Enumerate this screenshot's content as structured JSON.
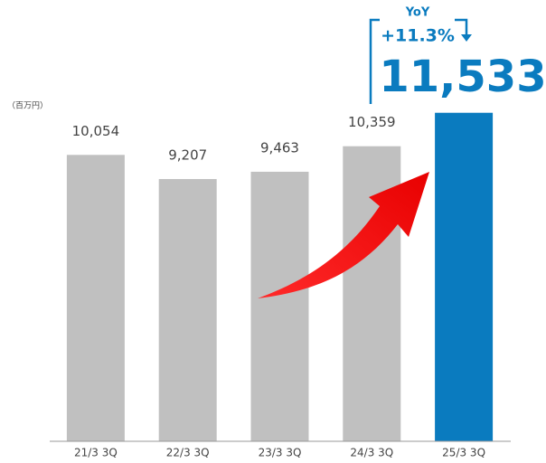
{
  "chart_data": {
    "type": "bar",
    "unit_label": "（百万円）",
    "categories": [
      "21/3 3Q",
      "22/3 3Q",
      "23/3 3Q",
      "24/3 3Q",
      "25/3 3Q"
    ],
    "values": [
      10054,
      9207,
      9463,
      10359,
      11533
    ],
    "value_labels": [
      "10,054",
      "9,207",
      "9,463",
      "10,359",
      "11,533"
    ],
    "colors": [
      "#c0c0c0",
      "#c0c0c0",
      "#c0c0c0",
      "#c0c0c0",
      "#0a7bbf"
    ],
    "ylim": [
      0,
      12000
    ],
    "annotations": [
      "YoY",
      "+11.3%"
    ]
  }
}
